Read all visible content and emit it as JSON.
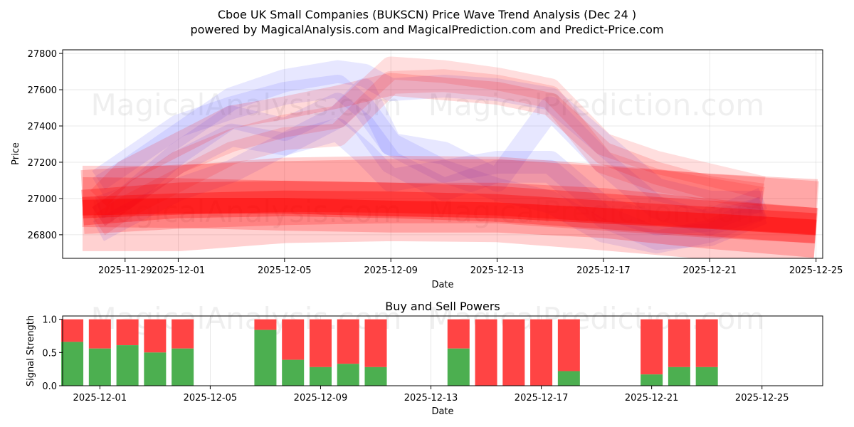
{
  "header": {
    "title_line1": "Cboe UK Small Companies (BUKSCN) Price Wave Trend Analysis (Dec 24 )",
    "title_line2": "powered by MagicalAnalysis.com and MagicalPrediction.com and Predict-Price.com"
  },
  "watermarks": {
    "left": "MagicalAnalysis.com",
    "right": "MagicalPrediction.com"
  },
  "colors": {
    "red": "#ff0000",
    "blue": "#4444ff",
    "buy": "#4caf50",
    "sell": "#ff4444"
  },
  "chart_data": [
    {
      "type": "area",
      "title": "Cboe UK Small Companies (BUKSCN) Price Wave Trend Analysis (Dec 24 )",
      "xlabel": "Date",
      "ylabel": "Price",
      "x_start": "2025-11-27",
      "ylim": [
        26670,
        27820
      ],
      "xlim_days": [
        -0.35,
        28.25
      ],
      "grid": true,
      "x_ticks": [
        {
          "day": 2,
          "label": "2025-11-29"
        },
        {
          "day": 4,
          "label": "2025-12-01"
        },
        {
          "day": 8,
          "label": "2025-12-05"
        },
        {
          "day": 12,
          "label": "2025-12-09"
        },
        {
          "day": 16,
          "label": "2025-12-13"
        },
        {
          "day": 20,
          "label": "2025-12-17"
        },
        {
          "day": 24,
          "label": "2025-12-21"
        },
        {
          "day": 28,
          "label": "2025-12-25"
        }
      ],
      "y_ticks": [
        26800,
        27000,
        27200,
        27400,
        27600,
        27800
      ],
      "red_bands": [
        {
          "width": 120,
          "opacity": 0.18,
          "points": [
            [
              0.4,
              26945
            ],
            [
              4,
              26945
            ],
            [
              8,
              26990
            ],
            [
              12,
              27000
            ],
            [
              16,
              26995
            ],
            [
              20,
              26950
            ],
            [
              24,
              26900
            ],
            [
              28,
              26860
            ]
          ]
        },
        {
          "width": 90,
          "opacity": 0.2,
          "points": [
            [
              0.4,
              26980
            ],
            [
              4,
              27010
            ],
            [
              8,
              27030
            ],
            [
              12,
              27040
            ],
            [
              16,
              27040
            ],
            [
              20,
              27000
            ],
            [
              24,
              26960
            ],
            [
              28,
              26930
            ]
          ]
        },
        {
          "width": 70,
          "opacity": 0.22,
          "points": [
            [
              0.4,
              26980
            ],
            [
              4,
              26975
            ],
            [
              8,
              26960
            ],
            [
              12,
              26950
            ],
            [
              16,
              26950
            ],
            [
              20,
              26920
            ],
            [
              24,
              26860
            ],
            [
              28,
              26810
            ]
          ]
        },
        {
          "width": 50,
          "opacity": 0.28,
          "points": [
            [
              0.4,
              26950
            ],
            [
              4,
              26990
            ],
            [
              8,
              27000
            ],
            [
              12,
              26990
            ],
            [
              16,
              26970
            ],
            [
              20,
              26930
            ],
            [
              24,
              26890
            ],
            [
              28,
              26850
            ]
          ]
        },
        {
          "width": 30,
          "opacity": 0.35,
          "points": [
            [
              0.4,
              26950
            ],
            [
              4,
              26970
            ],
            [
              8,
              26985
            ],
            [
              12,
              26980
            ],
            [
              16,
              26965
            ],
            [
              20,
              26930
            ],
            [
              24,
              26895
            ],
            [
              28,
              26860
            ]
          ]
        },
        {
          "width": 22,
          "opacity": 0.45,
          "points": [
            [
              0.4,
              26950
            ],
            [
              4,
              26960
            ],
            [
              8,
              26960
            ],
            [
              12,
              26945
            ],
            [
              16,
              26935
            ],
            [
              20,
              26905
            ],
            [
              24,
              26875
            ],
            [
              28,
              26840
            ]
          ]
        },
        {
          "width": 32,
          "opacity": 0.15,
          "points": [
            [
              1,
              27000
            ],
            [
              2,
              27150
            ],
            [
              4,
              27300
            ],
            [
              6,
              27450
            ],
            [
              8,
              27500
            ],
            [
              10,
              27560
            ],
            [
              12,
              27630
            ],
            [
              16,
              27580
            ],
            [
              18,
              27520
            ],
            [
              20,
              27250
            ],
            [
              22,
              27140
            ],
            [
              24,
              27060
            ],
            [
              26,
              27020
            ]
          ]
        },
        {
          "width": 32,
          "opacity": 0.13,
          "points": [
            [
              1,
              26900
            ],
            [
              2,
              27000
            ],
            [
              4,
              27200
            ],
            [
              6,
              27320
            ],
            [
              8,
              27400
            ],
            [
              10,
              27450
            ],
            [
              12,
              27720
            ],
            [
              14,
              27700
            ],
            [
              16,
              27660
            ],
            [
              18,
              27600
            ],
            [
              20,
              27300
            ],
            [
              22,
              27200
            ],
            [
              24,
              27130
            ],
            [
              26,
              27060
            ]
          ]
        },
        {
          "width": 32,
          "opacity": 0.13,
          "points": [
            [
              1,
              26850
            ],
            [
              2,
              26950
            ],
            [
              4,
              27100
            ],
            [
              6,
              27250
            ],
            [
              8,
              27330
            ],
            [
              10,
              27350
            ],
            [
              12,
              27640
            ],
            [
              14,
              27650
            ],
            [
              16,
              27620
            ],
            [
              18,
              27560
            ],
            [
              20,
              27200
            ],
            [
              22,
              27100
            ],
            [
              24,
              27050
            ],
            [
              26,
              27000
            ]
          ]
        }
      ],
      "blue_bands": [
        {
          "width": 32,
          "opacity": 0.13,
          "points": [
            [
              1,
              27060
            ],
            [
              2,
              27150
            ],
            [
              4,
              27350
            ],
            [
              6,
              27550
            ],
            [
              8,
              27650
            ],
            [
              10,
              27700
            ],
            [
              11,
              27680
            ],
            [
              12,
              27600
            ],
            [
              14,
              27620
            ],
            [
              16,
              27600
            ],
            [
              18,
              27550
            ],
            [
              20,
              27300
            ],
            [
              22,
              27050
            ],
            [
              24,
              26980
            ],
            [
              26,
              26980
            ]
          ]
        },
        {
          "width": 32,
          "opacity": 0.13,
          "points": [
            [
              1,
              27100
            ],
            [
              2,
              27200
            ],
            [
              4,
              27400
            ],
            [
              6,
              27500
            ],
            [
              8,
              27580
            ],
            [
              10,
              27620
            ],
            [
              11,
              27500
            ],
            [
              12,
              27300
            ],
            [
              14,
              27150
            ],
            [
              16,
              27200
            ],
            [
              18,
              27200
            ],
            [
              20,
              26950
            ],
            [
              22,
              26860
            ],
            [
              24,
              26880
            ],
            [
              26,
              27000
            ]
          ]
        },
        {
          "width": 32,
          "opacity": 0.13,
          "points": [
            [
              1,
              26950
            ],
            [
              2,
              27000
            ],
            [
              4,
              27200
            ],
            [
              6,
              27350
            ],
            [
              8,
              27300
            ],
            [
              10,
              27450
            ],
            [
              11,
              27600
            ],
            [
              12,
              27300
            ],
            [
              14,
              27250
            ],
            [
              16,
              27100
            ],
            [
              18,
              27500
            ],
            [
              20,
              27200
            ],
            [
              22,
              26950
            ],
            [
              24,
              26860
            ],
            [
              26,
              26950
            ]
          ]
        },
        {
          "width": 32,
          "opacity": 0.13,
          "points": [
            [
              1,
              26900
            ],
            [
              2,
              27000
            ],
            [
              4,
              27250
            ],
            [
              6,
              27450
            ],
            [
              8,
              27380
            ],
            [
              10,
              27520
            ],
            [
              11,
              27400
            ],
            [
              12,
              27200
            ],
            [
              14,
              27050
            ],
            [
              16,
              27150
            ],
            [
              18,
              27150
            ],
            [
              20,
              26900
            ],
            [
              22,
              26780
            ],
            [
              24,
              26800
            ],
            [
              26,
              26920
            ]
          ]
        },
        {
          "width": 32,
          "opacity": 0.13,
          "points": [
            [
              1,
              26820
            ],
            [
              2,
              26900
            ],
            [
              4,
              27050
            ],
            [
              6,
              27150
            ],
            [
              8,
              27300
            ],
            [
              10,
              27380
            ],
            [
              11,
              27250
            ],
            [
              12,
              27100
            ],
            [
              14,
              27150
            ],
            [
              16,
              27050
            ],
            [
              18,
              26980
            ],
            [
              20,
              26820
            ],
            [
              22,
              26760
            ],
            [
              24,
              26820
            ],
            [
              26,
              26950
            ]
          ]
        }
      ]
    },
    {
      "type": "bar",
      "title": "Buy and Sell Powers",
      "xlabel": "Date",
      "ylabel": "Signal Strength",
      "ylim": [
        0,
        1.05
      ],
      "x_start": "2025-11-27",
      "xlim_days": [
        2.65,
        30.2
      ],
      "x_ticks": [
        {
          "day": 4,
          "label": "2025-12-01"
        },
        {
          "day": 8,
          "label": "2025-12-05"
        },
        {
          "day": 12,
          "label": "2025-12-09"
        },
        {
          "day": 16,
          "label": "2025-12-13"
        },
        {
          "day": 20,
          "label": "2025-12-17"
        },
        {
          "day": 24,
          "label": "2025-12-21"
        },
        {
          "day": 28,
          "label": "2025-12-25"
        }
      ],
      "y_ticks": [
        {
          "value": 0,
          "label": "0.0"
        },
        {
          "value": 0.5,
          "label": "0.5"
        },
        {
          "value": 1,
          "label": "1.0"
        }
      ],
      "series": [
        {
          "name": "Buy",
          "color": "#4caf50"
        },
        {
          "name": "Sell",
          "color": "#ff4444"
        }
      ],
      "bars": [
        {
          "date": "2025-11-30",
          "day": 3,
          "buy": 0.66
        },
        {
          "date": "2025-12-01",
          "day": 4,
          "buy": 0.56
        },
        {
          "date": "2025-12-02",
          "day": 5,
          "buy": 0.61
        },
        {
          "date": "2025-12-03",
          "day": 6,
          "buy": 0.5
        },
        {
          "date": "2025-12-04",
          "day": 7,
          "buy": 0.56
        },
        {
          "date": "2025-12-07",
          "day": 10,
          "buy": 0.84
        },
        {
          "date": "2025-12-08",
          "day": 11,
          "buy": 0.39
        },
        {
          "date": "2025-12-09",
          "day": 12,
          "buy": 0.28
        },
        {
          "date": "2025-12-10",
          "day": 13,
          "buy": 0.33
        },
        {
          "date": "2025-12-11",
          "day": 14,
          "buy": 0.28
        },
        {
          "date": "2025-12-14",
          "day": 17,
          "buy": 0.56
        },
        {
          "date": "2025-12-15",
          "day": 18,
          "buy": 0.0
        },
        {
          "date": "2025-12-16",
          "day": 19,
          "buy": 0.0
        },
        {
          "date": "2025-12-17",
          "day": 20,
          "buy": 0.0
        },
        {
          "date": "2025-12-18",
          "day": 21,
          "buy": 0.22
        },
        {
          "date": "2025-12-21",
          "day": 24,
          "buy": 0.17
        },
        {
          "date": "2025-12-22",
          "day": 25,
          "buy": 0.28
        },
        {
          "date": "2025-12-23",
          "day": 26,
          "buy": 0.28
        }
      ]
    }
  ]
}
